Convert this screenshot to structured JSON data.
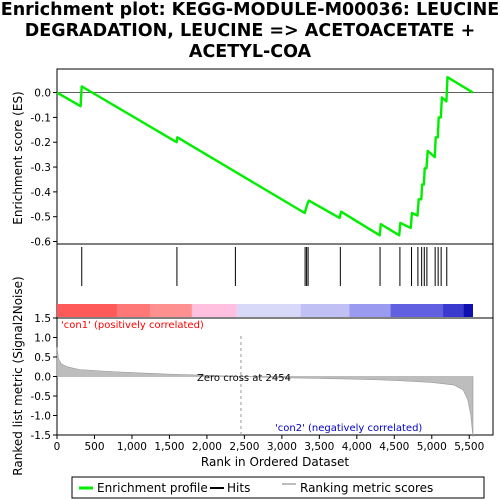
{
  "title_line1": "Enrichment plot: KEGG-MODULE-M00036: LEUCINE",
  "title_line2": "DEGRADATION, LEUCINE => ACETOACETATE +",
  "title_line3": "ACETYL-COA",
  "colors": {
    "es_line": "#00ee00",
    "hits": "#000000",
    "ranked_fill": "#bdbdbd",
    "positive_label": "#ff0000",
    "negative_label": "#0000cc"
  },
  "chart_data": [
    {
      "type": "line",
      "name": "enrichment-profile",
      "ylabel": "Enrichment score (ES)",
      "xlim": [
        0,
        5550
      ],
      "ylim": [
        -0.61,
        0.095
      ],
      "yticks": [
        "0.0",
        "-0.1",
        "-0.2",
        "-0.3",
        "-0.4",
        "-0.5",
        "-0.6"
      ],
      "ytick_values": [
        0.0,
        -0.1,
        -0.2,
        -0.3,
        -0.4,
        -0.5,
        -0.6
      ],
      "points": [
        [
          0,
          0.0
        ],
        [
          315,
          -0.055
        ],
        [
          330,
          0.025
        ],
        [
          1595,
          -0.2
        ],
        [
          1605,
          -0.18
        ],
        [
          3305,
          -0.485
        ],
        [
          3325,
          -0.465
        ],
        [
          3340,
          -0.45
        ],
        [
          3360,
          -0.435
        ],
        [
          3770,
          -0.505
        ],
        [
          3790,
          -0.48
        ],
        [
          4305,
          -0.575
        ],
        [
          4320,
          -0.53
        ],
        [
          4565,
          -0.575
        ],
        [
          4580,
          -0.525
        ],
        [
          4720,
          -0.545
        ],
        [
          4735,
          -0.485
        ],
        [
          4810,
          -0.495
        ],
        [
          4825,
          -0.43
        ],
        [
          4860,
          -0.43
        ],
        [
          4872,
          -0.37
        ],
        [
          4895,
          -0.37
        ],
        [
          4905,
          -0.305
        ],
        [
          4930,
          -0.305
        ],
        [
          4945,
          -0.235
        ],
        [
          5040,
          -0.26
        ],
        [
          5052,
          -0.18
        ],
        [
          5080,
          -0.18
        ],
        [
          5092,
          -0.1
        ],
        [
          5120,
          -0.1
        ],
        [
          5135,
          -0.02
        ],
        [
          5195,
          -0.035
        ],
        [
          5210,
          0.062
        ],
        [
          5550,
          0.0
        ]
      ]
    },
    {
      "type": "scatter",
      "name": "hits",
      "hit_positions": [
        330,
        1600,
        2380,
        3310,
        3330,
        3350,
        3780,
        4310,
        4575,
        4730,
        4815,
        4865,
        4900,
        4935,
        5045,
        5085,
        5125,
        5200
      ]
    },
    {
      "type": "area",
      "name": "ranked-list-metric",
      "xlabel": "Rank in Ordered Dataset",
      "ylabel": "Ranked list metric (Signal2Noise)",
      "xlim": [
        0,
        5550
      ],
      "ylim": [
        -1.5,
        1.5
      ],
      "xticks": [
        "0",
        "500",
        "1,000",
        "1,500",
        "2,000",
        "2,500",
        "3,000",
        "3,500",
        "4,000",
        "4,500",
        "5,000",
        "5,500"
      ],
      "xtick_values": [
        0,
        500,
        1000,
        1500,
        2000,
        2500,
        3000,
        3500,
        4000,
        4500,
        5000,
        5500
      ],
      "yticks": [
        "1.5",
        "1.0",
        "0.5",
        "0.0",
        "-0.5",
        "-1.0",
        "-1.5"
      ],
      "ytick_values": [
        1.5,
        1.0,
        0.5,
        0.0,
        -0.5,
        -1.0,
        -1.5
      ],
      "points": [
        [
          0,
          0.75
        ],
        [
          20,
          0.45
        ],
        [
          60,
          0.32
        ],
        [
          150,
          0.24
        ],
        [
          300,
          0.18
        ],
        [
          600,
          0.14
        ],
        [
          1000,
          0.1
        ],
        [
          1500,
          0.06
        ],
        [
          2000,
          0.03
        ],
        [
          2454,
          0.0
        ],
        [
          3000,
          -0.03
        ],
        [
          3500,
          -0.05
        ],
        [
          4000,
          -0.07
        ],
        [
          4500,
          -0.1
        ],
        [
          5000,
          -0.15
        ],
        [
          5300,
          -0.22
        ],
        [
          5420,
          -0.35
        ],
        [
          5480,
          -0.6
        ],
        [
          5520,
          -1.0
        ],
        [
          5550,
          -1.55
        ]
      ],
      "zero_cross_label": "Zero cross at 2454",
      "zero_cross": 2454,
      "positive_label": "'con1' (positively correlated)",
      "negative_label": "'con2' (negatively correlated)"
    }
  ],
  "legend": {
    "items": [
      {
        "label": "Enrichment profile",
        "color": "#00ee00"
      },
      {
        "label": "Hits",
        "color": "#000000"
      },
      {
        "label": "Ranking metric scores",
        "color": "#bdbdbd"
      }
    ]
  }
}
